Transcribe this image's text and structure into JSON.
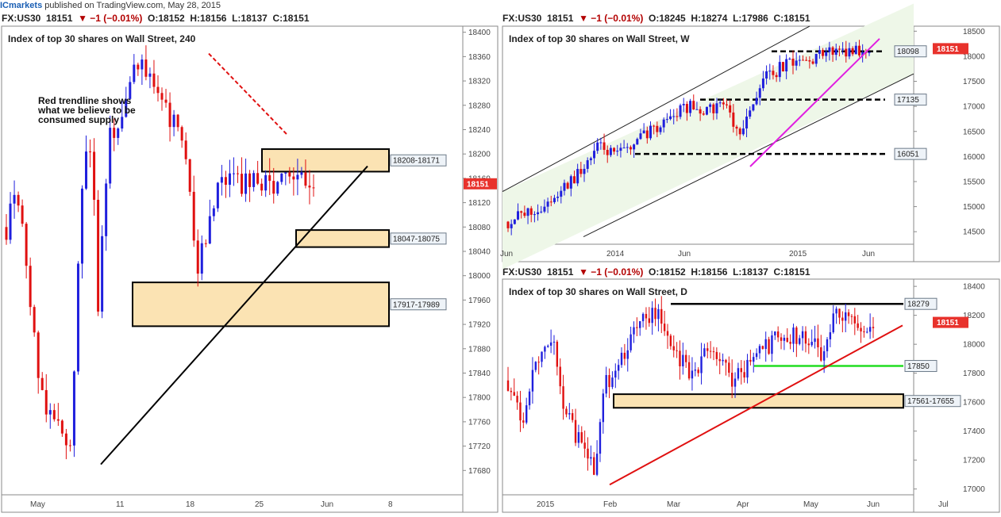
{
  "header": {
    "brand": "ICmarkets",
    "published": "published on TradingView.com, May 28, 2015"
  },
  "colors": {
    "bull": "#1f1fdd",
    "bear": "#e01010",
    "zone_fill": "#fbe3b3",
    "channel_fill": "#eef7e8",
    "price_tag": "#e8322c"
  },
  "chart_data": [
    {
      "id": "h4",
      "type": "candlestick",
      "symbol_line": {
        "symbol": "FX:US30",
        "last": "18151",
        "change": "▼ −1 (−0.01%)",
        "o": "O:18152",
        "h": "H:18156",
        "l": "L:18137",
        "c": "C:18151"
      },
      "title": "Index of top 30 shares on Wall Street, 240",
      "ylim": [
        17640,
        18410
      ],
      "y_ticks": [
        18400,
        18360,
        18320,
        18280,
        18240,
        18200,
        18160,
        18120,
        18080,
        18040,
        18000,
        17960,
        17920,
        17880,
        17840,
        17800,
        17760,
        17720,
        17680
      ],
      "x_ticks": [
        "May",
        "11",
        "18",
        "25",
        "Jun",
        "8"
      ],
      "last_price": "18151",
      "annotation": [
        "Red trendline shows",
        "what we believe to be",
        "consumed supply"
      ],
      "zones": [
        {
          "label": "18208-18171",
          "high": 18208,
          "low": 18171
        },
        {
          "label": "18047-18075",
          "high": 18075,
          "low": 18047
        },
        {
          "label": "17917-17989",
          "high": 17989,
          "low": 17917
        }
      ],
      "lines": [
        {
          "kind": "support_trendline",
          "color": "#000000",
          "from": [
            17690,
            "May 8"
          ],
          "to": [
            18180,
            "Jun 4"
          ]
        },
        {
          "kind": "supply_trendline",
          "color": "#e01010",
          "from": [
            18360,
            "May 19"
          ],
          "to": [
            18230,
            "May 26"
          ]
        }
      ]
    },
    {
      "id": "weekly",
      "type": "candlestick",
      "symbol_line": {
        "symbol": "FX:US30",
        "last": "18151",
        "change": "▼ −1 (−0.01%)",
        "o": "O:18245",
        "h": "H:18274",
        "l": "L:17986",
        "c": "C:18151"
      },
      "title": "Index of top 30 shares on Wall Street, W",
      "ylim": [
        14250,
        18600
      ],
      "y_ticks": [
        18500,
        18000,
        17500,
        17000,
        16500,
        16000,
        15500,
        15000,
        14500
      ],
      "x_ticks": [
        "Jun",
        "2014",
        "Jun",
        "2015",
        "Jun"
      ],
      "last_price": "18151",
      "levels": [
        {
          "label": "18098",
          "value": 18098
        },
        {
          "label": "17135",
          "value": 17135
        },
        {
          "label": "16051",
          "value": 16051
        }
      ],
      "lines": [
        {
          "kind": "ascending_channel",
          "color": "#000000"
        },
        {
          "kind": "trendline",
          "color": "#e020e0"
        }
      ]
    },
    {
      "id": "daily",
      "type": "candlestick",
      "symbol_line": {
        "symbol": "FX:US30",
        "last": "18151",
        "change": "▼ −1 (−0.01%)",
        "o": "O:18152",
        "h": "H:18156",
        "l": "L:18137",
        "c": "C:18151"
      },
      "title": "Index of top 30 shares on Wall Street, D",
      "ylim": [
        16960,
        18450
      ],
      "y_ticks": [
        18400,
        18200,
        18000,
        17800,
        17600,
        17400,
        17200,
        17000
      ],
      "x_ticks": [
        "2015",
        "Feb",
        "Mar",
        "Apr",
        "May",
        "Jun",
        "Jul"
      ],
      "last_price": "18151",
      "levels": [
        {
          "label": "18279",
          "value": 18279,
          "color": "#000000"
        },
        {
          "label": "17850",
          "value": 17850,
          "color": "#22dd22"
        }
      ],
      "zones": [
        {
          "label": "17561-17655",
          "high": 17655,
          "low": 17561
        }
      ],
      "lines": [
        {
          "kind": "trendline",
          "color": "#e01010"
        }
      ]
    }
  ]
}
